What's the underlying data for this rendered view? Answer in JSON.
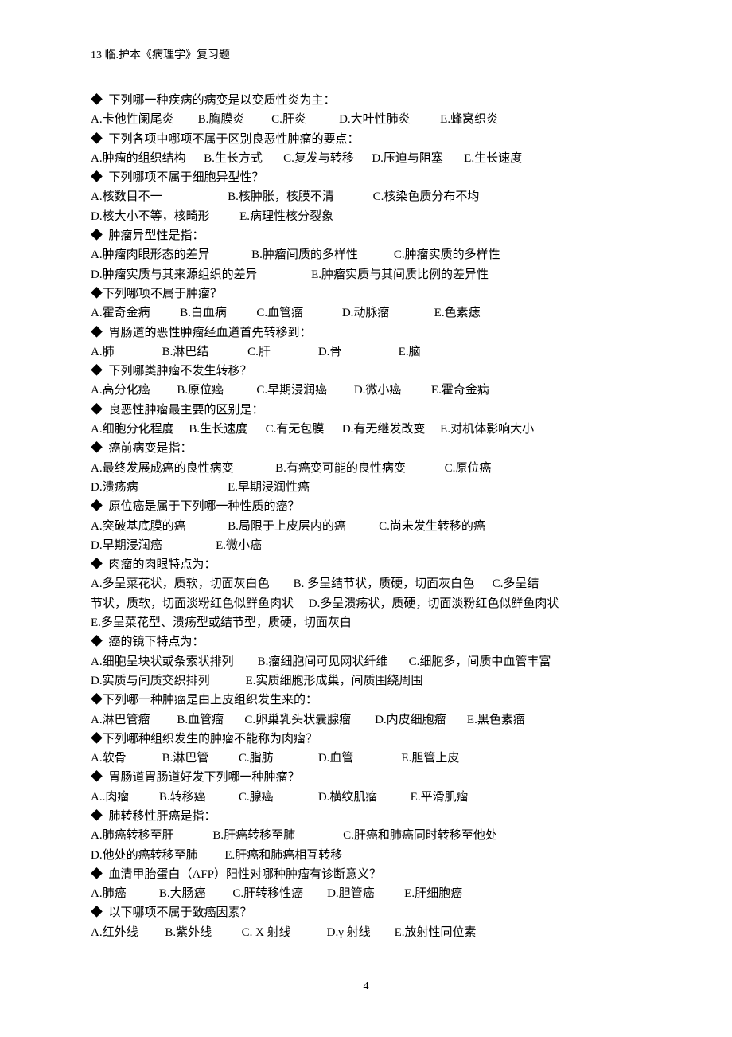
{
  "header": "13 临.护本《病理学》复习题",
  "lines": [
    "◆  下列哪一种疾病的病变是以变质性炎为主：",
    "A.卡他性阑尾炎        B.胸膜炎         C.肝炎           D.大叶性肺炎          E.蜂窝织炎",
    "◆  下列各项中哪项不属于区别良恶性肿瘤的要点：",
    "A.肿瘤的组织结构      B.生长方式       C.复发与转移      D.压迫与阻塞       E.生长速度",
    "◆  下列哪项不属于细胞异型性？",
    "A.核数目不一                      B.核肿胀，核膜不清             C.核染色质分布不均",
    "D.核大小不等，核畸形          E.病理性核分裂象",
    "◆  肿瘤异型性是指：",
    "A.肿瘤肉眼形态的差异              B.肿瘤间质的多样性            C.肿瘤实质的多样性",
    "D.肿瘤实质与其来源组织的差异                  E.肿瘤实质与其间质比例的差异性",
    "◆下列哪项不属于肿瘤？",
    "A.霍奇金病          B.白血病          C.血管瘤             D.动脉瘤               E.色素痣",
    "◆  胃肠道的恶性肿瘤经血道首先转移到：",
    "A.肺                B.淋巴结             C.肝                D.骨                   E.脑",
    "◆  下列哪类肿瘤不发生转移？",
    "A.高分化癌         B.原位癌           C.早期浸润癌         D.微小癌          E.霍奇金病",
    "◆  良恶性肿瘤最主要的区别是：",
    "A.细胞分化程度     B.生长速度      C.有无包膜      D.有无继发改变     E.对机体影响大小",
    "◆  癌前病变是指：",
    "A.最终发展成癌的良性病变              B.有癌变可能的良性病变             C.原位癌",
    "D.溃疡病                              E.早期浸润性癌",
    "◆  原位癌是属于下列哪一种性质的癌？",
    "A.突破基底膜的癌              B.局限于上皮层内的癌           C.尚未发生转移的癌",
    "D.早期浸润癌                  E.微小癌",
    "◆  肉瘤的肉眼特点为：",
    "A.多呈菜花状，质软，切面灰白色        B. 多呈结节状，质硬，切面灰白色      C.多呈结",
    "节状，质软，切面淡粉红色似鲜鱼肉状     D.多呈溃疡状，质硬，切面淡粉红色似鲜鱼肉状",
    "E.多呈菜花型、溃疡型或结节型，质硬，切面灰白",
    "◆  癌的镜下特点为：",
    "A.细胞呈块状或条索状排列        B.瘤细胞间可见网状纤维       C.细胞多，间质中血管丰富",
    "D.实质与间质交织排列            E.实质细胞形成巢，间质围绕周围",
    "◆下列哪一种肿瘤是由上皮组织发生来的：",
    "A.淋巴管瘤         B.血管瘤       C.卵巢乳头状囊腺瘤        D.内皮细胞瘤       E.黑色素瘤",
    "◆下列哪种组织发生的肿瘤不能称为肉瘤？",
    "A.软骨            B.淋巴管          C.脂肪               D.血管                E.胆管上皮",
    "◆  胃肠道胃肠道好发下列哪一种肿瘤？",
    "A..肉瘤          B.转移癌           C.腺癌               D.横纹肌瘤           E.平滑肌瘤",
    "◆  肺转移性肝癌是指：",
    "A.肺癌转移至肝             B.肝癌转移至肺                C.肝癌和肺癌同时转移至他处",
    "D.他处的癌转移至肺         E.肝癌和肺癌相互转移",
    "◆  血清甲胎蛋白（AFP）阳性对哪种肿瘤有诊断意义？",
    "A.肺癌           B.大肠癌         C.肝转移性癌        D.胆管癌          E.肝细胞癌",
    "◆  以下哪项不属于致癌因素？",
    "A.红外线         B.紫外线          C. X 射线            D.γ 射线        E.放射性同位素"
  ],
  "pageNumber": "4",
  "style": {
    "background_color": "#ffffff",
    "text_color": "#000000",
    "header_fontsize": 14,
    "body_fontsize": 15,
    "line_height": 1.62,
    "font_family": "SimSun"
  }
}
